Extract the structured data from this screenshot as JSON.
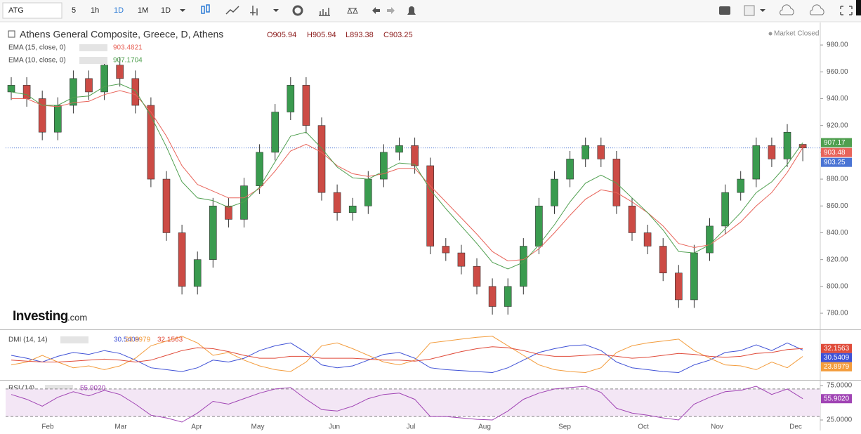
{
  "toolbar": {
    "symbol": "ATG",
    "intervals": [
      "5",
      "1h",
      "1D",
      "1M"
    ],
    "interval_select": "1D"
  },
  "header": {
    "title": "Athens General Composite, Greece, D, Athens",
    "ohlc": [
      "O905.94",
      "H905.94",
      "L893.38",
      "C903.25"
    ],
    "status": "Market Closed"
  },
  "logo": {
    "brand": "Investing",
    "suffix": ".com"
  },
  "chart_data": [
    {
      "type": "candlestick",
      "open": [
        945,
        950,
        940,
        915,
        935,
        955,
        945,
        965,
        955,
        935,
        880,
        840,
        800,
        820,
        860,
        850,
        875,
        900,
        930,
        950,
        920,
        870,
        855,
        860,
        880,
        900,
        905,
        890,
        830,
        825,
        815,
        800,
        785,
        800,
        830,
        860,
        880,
        895,
        905,
        895,
        860,
        840,
        830,
        810,
        790,
        825,
        845,
        870,
        880,
        905,
        895,
        905.94
      ],
      "high": [
        956,
        956,
        946,
        941,
        961,
        961,
        971,
        971,
        961,
        941,
        886,
        846,
        826,
        866,
        866,
        881,
        906,
        936,
        956,
        956,
        926,
        876,
        866,
        886,
        906,
        911,
        911,
        896,
        836,
        831,
        821,
        806,
        806,
        836,
        866,
        886,
        901,
        911,
        911,
        901,
        866,
        846,
        836,
        816,
        831,
        851,
        876,
        886,
        911,
        911,
        921,
        905.94
      ],
      "low": [
        939,
        934,
        909,
        909,
        929,
        939,
        939,
        949,
        929,
        874,
        834,
        794,
        794,
        814,
        844,
        844,
        869,
        894,
        924,
        914,
        864,
        849,
        849,
        854,
        874,
        894,
        884,
        824,
        819,
        809,
        794,
        779,
        779,
        794,
        824,
        854,
        874,
        889,
        889,
        854,
        834,
        824,
        804,
        784,
        784,
        819,
        839,
        864,
        874,
        889,
        889,
        893.38
      ],
      "close": [
        950,
        940,
        915,
        935,
        955,
        945,
        965,
        955,
        935,
        880,
        840,
        800,
        820,
        860,
        850,
        875,
        900,
        930,
        950,
        920,
        870,
        855,
        860,
        880,
        900,
        905,
        890,
        830,
        825,
        815,
        800,
        785,
        800,
        830,
        860,
        880,
        895,
        905,
        895,
        860,
        840,
        830,
        810,
        790,
        825,
        845,
        870,
        880,
        905,
        895,
        915,
        903.25
      ],
      "last_label": "903.25",
      "up_color": "#3a9b4f",
      "down_color": "#cc4b45",
      "last_color": "#4a74d4",
      "ylim": [
        768.5,
        996.8
      ],
      "yticks": [
        {
          "value": 980,
          "label": "980.00"
        },
        {
          "value": 960,
          "label": "960.00"
        },
        {
          "value": 940,
          "label": "940.00"
        },
        {
          "value": 920,
          "label": "920.00"
        },
        {
          "value": 900,
          "label": "900.00"
        },
        {
          "value": 880,
          "label": "880.00"
        },
        {
          "value": 860,
          "label": "860.00"
        },
        {
          "value": 840,
          "label": "840.00"
        },
        {
          "value": 820,
          "label": "820.00"
        },
        {
          "value": 800,
          "label": "800.00"
        },
        {
          "value": 780,
          "label": "780.00"
        }
      ],
      "x_labels": [
        "Feb",
        "Mar",
        "Apr",
        "May",
        "Jun",
        "Jul",
        "Aug",
        "Sep",
        "Oct",
        "Nov",
        "Dec"
      ],
      "series": [
        {
          "name": "EMA (15, close, 0)",
          "color": "#e8645a",
          "last_label": "903.48",
          "values": [
            940,
            940,
            935,
            934,
            937,
            938,
            943,
            946,
            943,
            930,
            912,
            890,
            876,
            871,
            866,
            866,
            873,
            886,
            901,
            906,
            900,
            890,
            884,
            882,
            884,
            888,
            888,
            875,
            863,
            851,
            839,
            826,
            819,
            820,
            828,
            840,
            853,
            865,
            872,
            870,
            863,
            855,
            845,
            832,
            829,
            831,
            839,
            848,
            860,
            870,
            885,
            903.4821
          ]
        },
        {
          "name": "EMA (10, close, 0)",
          "color": "#4f9f4f",
          "last_label": "907.17",
          "values": [
            945,
            943,
            935,
            935,
            941,
            942,
            949,
            951,
            946,
            927,
            904,
            878,
            866,
            864,
            859,
            863,
            874,
            893,
            912,
            915,
            903,
            889,
            881,
            880,
            886,
            892,
            891,
            872,
            858,
            845,
            832,
            818,
            813,
            818,
            831,
            846,
            863,
            877,
            883,
            877,
            866,
            855,
            842,
            826,
            825,
            831,
            843,
            855,
            870,
            878,
            891,
            907.1704
          ]
        }
      ]
    },
    {
      "type": "line",
      "title": "DMI (14, 14)",
      "ylim": [
        0,
        50
      ],
      "series": [
        {
          "color": "#3f51d6",
          "values": [
            25,
            22,
            18,
            24,
            28,
            26,
            30,
            27,
            20,
            12,
            10,
            8,
            12,
            20,
            18,
            22,
            30,
            35,
            38,
            28,
            15,
            12,
            14,
            20,
            26,
            28,
            22,
            12,
            10,
            9,
            8,
            7,
            12,
            20,
            28,
            32,
            35,
            36,
            30,
            18,
            12,
            10,
            8,
            7,
            15,
            20,
            28,
            30,
            36,
            30,
            38,
            30.5409
          ]
        },
        {
          "color": "#f39c3c",
          "values": [
            15,
            18,
            25,
            18,
            12,
            14,
            10,
            14,
            22,
            35,
            40,
            45,
            38,
            25,
            28,
            20,
            14,
            10,
            8,
            18,
            35,
            38,
            32,
            25,
            18,
            15,
            20,
            38,
            40,
            42,
            44,
            45,
            35,
            25,
            15,
            10,
            8,
            7,
            12,
            28,
            35,
            38,
            40,
            42,
            30,
            22,
            15,
            14,
            10,
            18,
            12,
            23.8979
          ]
        },
        {
          "color": "#e04b3a",
          "values": [
            20,
            19,
            18,
            18,
            19,
            20,
            21,
            20,
            18,
            20,
            25,
            30,
            33,
            32,
            29,
            25,
            22,
            22,
            24,
            24,
            22,
            22,
            22,
            21,
            20,
            20,
            19,
            21,
            25,
            29,
            32,
            34,
            33,
            30,
            26,
            24,
            24,
            25,
            26,
            24,
            22,
            23,
            25,
            27,
            26,
            24,
            23,
            24,
            27,
            28,
            31,
            32.1563
          ]
        }
      ]
    },
    {
      "type": "line",
      "title": "RSI (14)",
      "color": "#a044b4",
      "band_color": "#f3e6f5",
      "bands": [
        30,
        70
      ],
      "ylim": [
        17.9,
        81.1
      ],
      "yticks": [
        {
          "value": 75,
          "label": "75.0000"
        },
        {
          "value": 25,
          "label": "25.0000"
        }
      ],
      "last_label": "55.9020",
      "values": [
        62,
        55,
        45,
        58,
        66,
        60,
        68,
        62,
        48,
        32,
        28,
        22,
        35,
        52,
        48,
        56,
        64,
        70,
        72,
        55,
        40,
        38,
        45,
        56,
        62,
        64,
        55,
        30,
        30,
        28,
        26,
        25,
        38,
        55,
        64,
        70,
        72,
        74,
        65,
        42,
        35,
        32,
        28,
        25,
        48,
        58,
        66,
        68,
        74,
        62,
        70,
        55.902
      ]
    }
  ]
}
